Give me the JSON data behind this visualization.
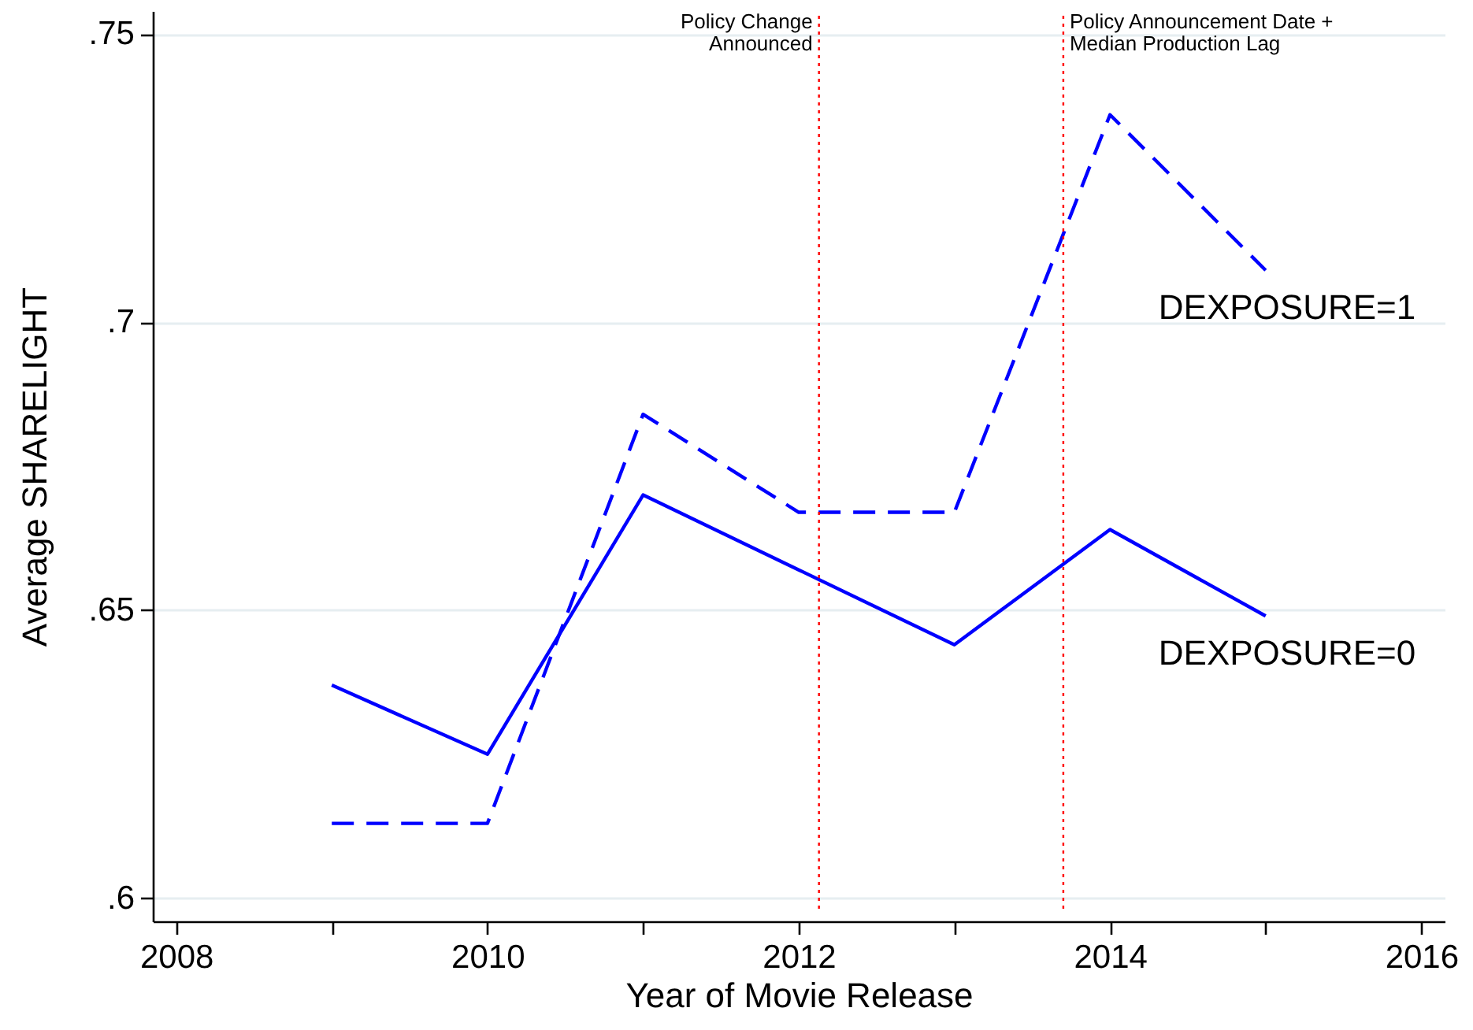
{
  "chart_data": {
    "type": "line",
    "xlabel": "Year of Movie Release",
    "ylabel": "Average SHARELIGHT",
    "x": [
      2009,
      2010,
      2011,
      2012,
      2013,
      2014,
      2015
    ],
    "series": [
      {
        "name": "DEXPOSURE=1",
        "color": "#0000ff",
        "line_style": "dashed",
        "values": [
          0.613,
          0.613,
          0.684,
          0.667,
          0.667,
          0.736,
          0.709
        ]
      },
      {
        "name": "DEXPOSURE=0",
        "color": "#0000ff",
        "line_style": "solid",
        "values": [
          0.637,
          0.625,
          0.67,
          0.657,
          0.644,
          0.664,
          0.649
        ]
      }
    ],
    "xlim": [
      2007.85,
      2016.15
    ],
    "ylim": [
      0.596,
      0.754
    ],
    "xticks": [
      2008,
      {
        "value": 2009,
        "label": null
      },
      2010,
      {
        "value": 2011,
        "label": null
      },
      2012,
      {
        "value": 2013,
        "label": null
      },
      2014,
      {
        "value": 2015,
        "label": null
      },
      2016
    ],
    "yticks": [
      {
        "value": 0.6,
        "label": ".6"
      },
      {
        "value": 0.65,
        "label": ".65"
      },
      {
        "value": 0.7,
        "label": ".7"
      },
      {
        "value": 0.75,
        "label": ".75"
      }
    ],
    "grid": "y",
    "ref_lines": [
      {
        "axis": "x",
        "value": 2012.13,
        "label": "Policy Change\nAnnounced",
        "color": "#ff0000",
        "line_style": "dotted"
      },
      {
        "axis": "x",
        "value": 2013.7,
        "label": "Policy Announcement Date +\nMedian Production Lag",
        "color": "#ff0000",
        "line_style": "dotted"
      }
    ]
  }
}
